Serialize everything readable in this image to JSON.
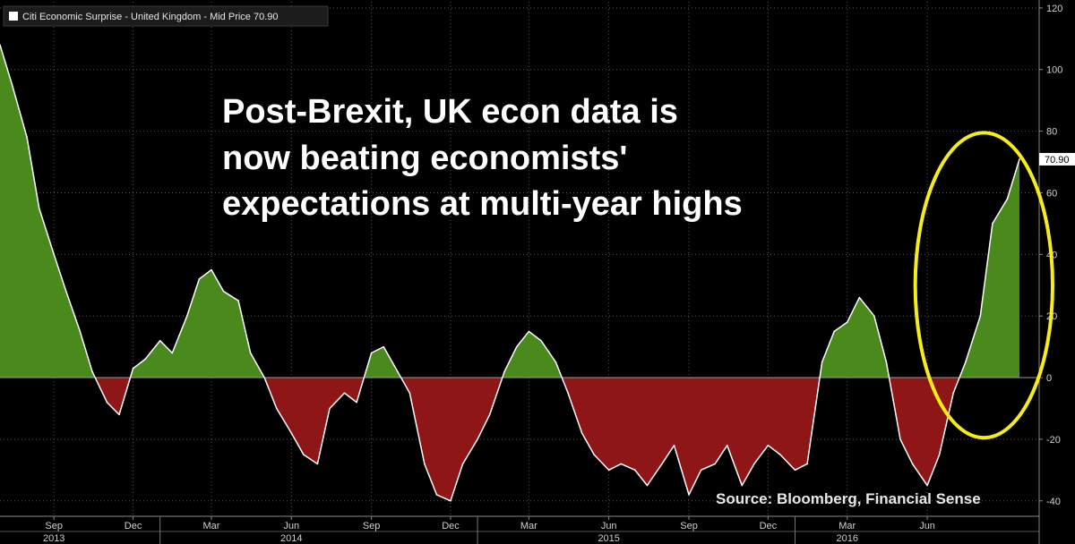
{
  "legend": {
    "label": "Citi Economic Surprise - United Kingdom - Mid Price 70.90"
  },
  "headline": {
    "lines": [
      "Post-Brexit, UK econ data is",
      "now beating economists'",
      "expectations at multi-year highs"
    ]
  },
  "source_note": "Source: Bloomberg, Financial Sense",
  "last_price_label": "70.90",
  "colors": {
    "background": "#000000",
    "positive_fill": "#4a8a1c",
    "negative_fill": "#8e1616",
    "line": "#ffffff",
    "grid": "#555555",
    "highlight_ellipse": "#f5ec1c",
    "last_price_tag": "#ffffff"
  },
  "chart_data": {
    "type": "area",
    "title": "",
    "series": [
      {
        "name": "Citi Economic Surprise - United Kingdom - Mid Price",
        "x": [
          "2013-07-01",
          "2013-07-15",
          "2013-08-01",
          "2013-08-15",
          "2013-09-01",
          "2013-09-15",
          "2013-10-01",
          "2013-10-15",
          "2013-11-01",
          "2013-11-15",
          "2013-12-01",
          "2013-12-15",
          "2014-01-01",
          "2014-01-15",
          "2014-02-01",
          "2014-02-15",
          "2014-03-01",
          "2014-03-15",
          "2014-04-01",
          "2014-04-15",
          "2014-05-01",
          "2014-05-15",
          "2014-06-01",
          "2014-06-15",
          "2014-07-01",
          "2014-07-15",
          "2014-08-01",
          "2014-08-15",
          "2014-09-01",
          "2014-09-15",
          "2014-10-01",
          "2014-10-15",
          "2014-11-01",
          "2014-11-15",
          "2014-12-01",
          "2014-12-15",
          "2015-01-01",
          "2015-01-15",
          "2015-02-01",
          "2015-02-15",
          "2015-03-01",
          "2015-03-15",
          "2015-04-01",
          "2015-04-15",
          "2015-05-01",
          "2015-05-15",
          "2015-06-01",
          "2015-06-15",
          "2015-07-01",
          "2015-07-15",
          "2015-08-01",
          "2015-08-15",
          "2015-09-01",
          "2015-09-15",
          "2015-10-01",
          "2015-10-15",
          "2015-11-01",
          "2015-11-15",
          "2015-12-01",
          "2015-12-15",
          "2016-01-01",
          "2016-01-15",
          "2016-02-01",
          "2016-02-15",
          "2016-03-01",
          "2016-03-15",
          "2016-04-01",
          "2016-04-15",
          "2016-05-01",
          "2016-05-15",
          "2016-06-01",
          "2016-06-15",
          "2016-07-01",
          "2016-07-15",
          "2016-08-01",
          "2016-08-15",
          "2016-09-01",
          "2016-09-15"
        ],
        "values": [
          108,
          95,
          78,
          55,
          40,
          28,
          15,
          2,
          -8,
          -12,
          3,
          6,
          12,
          8,
          20,
          32,
          35,
          28,
          25,
          8,
          0,
          -10,
          -18,
          -25,
          -28,
          -10,
          -5,
          -8,
          8,
          10,
          2,
          -5,
          -28,
          -38,
          -40,
          -28,
          -20,
          -12,
          2,
          10,
          15,
          12,
          5,
          -5,
          -18,
          -25,
          -30,
          -28,
          -30,
          -35,
          -28,
          -22,
          -38,
          -30,
          -28,
          -22,
          -35,
          -28,
          -22,
          -25,
          -30,
          -28,
          5,
          15,
          18,
          26,
          20,
          5,
          -20,
          -28,
          -35,
          -25,
          -5,
          5,
          20,
          50,
          58,
          70.9
        ]
      }
    ],
    "xlabel": "",
    "ylabel": "",
    "ylim": [
      -45,
      122
    ],
    "y_ticks": [
      -40,
      -20,
      0,
      20,
      40,
      60,
      80,
      100,
      120
    ],
    "x_ticks": [
      {
        "date": "2013-09-01",
        "label": "Sep"
      },
      {
        "date": "2013-12-01",
        "label": "Dec"
      },
      {
        "date": "2014-03-01",
        "label": "Mar"
      },
      {
        "date": "2014-06-01",
        "label": "Jun"
      },
      {
        "date": "2014-09-01",
        "label": "Sep"
      },
      {
        "date": "2014-12-01",
        "label": "Dec"
      },
      {
        "date": "2015-03-01",
        "label": "Mar"
      },
      {
        "date": "2015-06-01",
        "label": "Jun"
      },
      {
        "date": "2015-09-01",
        "label": "Sep"
      },
      {
        "date": "2015-12-01",
        "label": "Dec"
      },
      {
        "date": "2016-03-01",
        "label": "Mar"
      },
      {
        "date": "2016-06-01",
        "label": "Jun"
      }
    ],
    "year_labels": [
      {
        "date": "2013-09-01",
        "label": "2013"
      },
      {
        "date": "2014-06-01",
        "label": "2014"
      },
      {
        "date": "2015-06-01",
        "label": "2015"
      },
      {
        "date": "2016-03-01",
        "label": "2016"
      }
    ],
    "year_boundaries": [
      "2014-01-01",
      "2015-01-01",
      "2016-01-01"
    ],
    "grid": true,
    "legend_position": "top-left",
    "highlight": {
      "from": "2016-06-15",
      "to": "2016-09-15",
      "center_value": 30
    }
  }
}
